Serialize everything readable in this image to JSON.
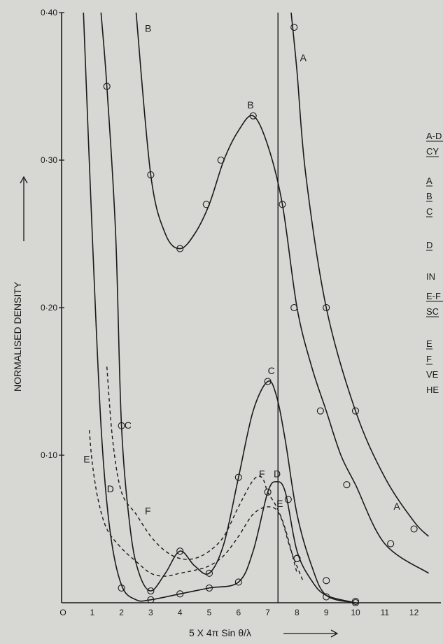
{
  "chart_data": {
    "type": "line",
    "xlabel": "5 X 4π Sin θ/λ",
    "ylabel": "NORMALISED  DENSITY",
    "xlim": [
      0,
      13
    ],
    "ylim": [
      0,
      0.4
    ],
    "x_ticks": [
      "O",
      "1",
      "2",
      "3",
      "4",
      "5",
      "6",
      "7",
      "8",
      "9",
      "10",
      "11",
      "12"
    ],
    "y_ticks": [
      "0·40",
      "0·30",
      "0·20",
      "0·10"
    ],
    "y_tick_values": [
      0.4,
      0.3,
      0.2,
      0.1
    ],
    "vertical_line_x": 7.35,
    "grid": false,
    "series": [
      {
        "name": "A",
        "style": "solid",
        "curve": [
          [
            7.8,
            0.4
          ],
          [
            8.0,
            0.36
          ],
          [
            8.3,
            0.29
          ],
          [
            9.0,
            0.2
          ],
          [
            10.0,
            0.13
          ],
          [
            11.0,
            0.085
          ],
          [
            12.0,
            0.055
          ],
          [
            12.5,
            0.045
          ]
        ],
        "points": [
          [
            7.9,
            0.39
          ],
          [
            9.0,
            0.2
          ],
          [
            10.0,
            0.13
          ],
          [
            12.0,
            0.05
          ]
        ]
      },
      {
        "name": "B",
        "style": "solid",
        "curve": [
          [
            2.5,
            0.4
          ],
          [
            3.0,
            0.29
          ],
          [
            3.5,
            0.25
          ],
          [
            4.0,
            0.24
          ],
          [
            4.5,
            0.25
          ],
          [
            5.0,
            0.27
          ],
          [
            5.5,
            0.3
          ],
          [
            6.0,
            0.32
          ],
          [
            6.5,
            0.33
          ],
          [
            7.0,
            0.31
          ],
          [
            7.5,
            0.27
          ],
          [
            8.0,
            0.2
          ],
          [
            8.5,
            0.16
          ],
          [
            9.0,
            0.13
          ],
          [
            9.5,
            0.1
          ],
          [
            10.0,
            0.08
          ],
          [
            11.0,
            0.04
          ],
          [
            12.5,
            0.02
          ]
        ],
        "points": [
          [
            3.0,
            0.29
          ],
          [
            4.0,
            0.24
          ],
          [
            4.9,
            0.27
          ],
          [
            5.4,
            0.3
          ],
          [
            6.5,
            0.33
          ],
          [
            7.5,
            0.27
          ],
          [
            7.9,
            0.2
          ],
          [
            8.8,
            0.13
          ],
          [
            9.7,
            0.08
          ],
          [
            11.2,
            0.04
          ]
        ]
      },
      {
        "name": "C",
        "style": "solid",
        "curve": [
          [
            1.3,
            0.4
          ],
          [
            1.5,
            0.35
          ],
          [
            1.8,
            0.25
          ],
          [
            2.0,
            0.12
          ],
          [
            2.3,
            0.05
          ],
          [
            2.6,
            0.02
          ],
          [
            3.0,
            0.008
          ],
          [
            3.5,
            0.02
          ],
          [
            4.0,
            0.035
          ],
          [
            4.5,
            0.025
          ],
          [
            5.0,
            0.02
          ],
          [
            5.5,
            0.04
          ],
          [
            6.0,
            0.085
          ],
          [
            6.5,
            0.13
          ],
          [
            7.0,
            0.15
          ],
          [
            7.3,
            0.14
          ],
          [
            7.6,
            0.11
          ],
          [
            8.0,
            0.06
          ],
          [
            8.5,
            0.025
          ],
          [
            9.0,
            0.005
          ],
          [
            10.0,
            0.0
          ]
        ],
        "points": [
          [
            1.5,
            0.35
          ],
          [
            2.0,
            0.12
          ],
          [
            3.0,
            0.008
          ],
          [
            4.0,
            0.035
          ],
          [
            5.0,
            0.02
          ],
          [
            6.0,
            0.085
          ],
          [
            7.0,
            0.15
          ],
          [
            8.0,
            0.03
          ],
          [
            9.0,
            0.004
          ],
          [
            10.0,
            0.001
          ]
        ]
      },
      {
        "name": "D",
        "style": "solid",
        "curve": [
          [
            0.7,
            0.4
          ],
          [
            1.0,
            0.25
          ],
          [
            1.3,
            0.12
          ],
          [
            1.6,
            0.05
          ],
          [
            2.0,
            0.012
          ],
          [
            2.5,
            0.002
          ],
          [
            3.0,
            0.002
          ],
          [
            4.0,
            0.006
          ],
          [
            5.0,
            0.01
          ],
          [
            6.0,
            0.014
          ],
          [
            6.5,
            0.035
          ],
          [
            7.0,
            0.075
          ],
          [
            7.3,
            0.082
          ],
          [
            7.6,
            0.075
          ],
          [
            8.0,
            0.035
          ],
          [
            8.5,
            0.015
          ],
          [
            9.0,
            0.005
          ],
          [
            10.0,
            0.0
          ]
        ],
        "points": [
          [
            2.0,
            0.01
          ],
          [
            3.0,
            0.002
          ],
          [
            4.0,
            0.006
          ],
          [
            5.0,
            0.01
          ],
          [
            6.0,
            0.014
          ],
          [
            7.0,
            0.075
          ],
          [
            7.7,
            0.07
          ],
          [
            8.0,
            0.03
          ],
          [
            9.0,
            0.015
          ],
          [
            10.0,
            0.0
          ]
        ]
      },
      {
        "name": "E",
        "style": "dashed",
        "curve": [
          [
            0.9,
            0.117
          ],
          [
            1.0,
            0.095
          ],
          [
            1.2,
            0.07
          ],
          [
            1.5,
            0.05
          ],
          [
            2.0,
            0.037
          ],
          [
            2.5,
            0.028
          ],
          [
            3.0,
            0.02
          ],
          [
            3.5,
            0.018
          ],
          [
            4.0,
            0.02
          ],
          [
            4.5,
            0.022
          ],
          [
            5.0,
            0.025
          ],
          [
            5.5,
            0.032
          ],
          [
            6.0,
            0.045
          ],
          [
            6.5,
            0.06
          ],
          [
            7.0,
            0.065
          ],
          [
            7.4,
            0.06
          ],
          [
            7.8,
            0.035
          ],
          [
            8.2,
            0.015
          ]
        ]
      },
      {
        "name": "F",
        "style": "dashed",
        "curve": [
          [
            1.5,
            0.16
          ],
          [
            1.7,
            0.11
          ],
          [
            2.0,
            0.075
          ],
          [
            2.5,
            0.06
          ],
          [
            3.0,
            0.045
          ],
          [
            3.5,
            0.035
          ],
          [
            4.0,
            0.03
          ],
          [
            4.5,
            0.03
          ],
          [
            5.0,
            0.035
          ],
          [
            5.5,
            0.045
          ],
          [
            6.0,
            0.065
          ],
          [
            6.5,
            0.083
          ],
          [
            6.8,
            0.085
          ],
          [
            7.0,
            0.075
          ],
          [
            7.3,
            0.065
          ],
          [
            7.6,
            0.05
          ],
          [
            8.0,
            0.02
          ]
        ]
      }
    ],
    "curve_labels": [
      {
        "text": "B",
        "x": 2.8,
        "y": 0.387
      },
      {
        "text": "A",
        "x": 8.1,
        "y": 0.367
      },
      {
        "text": "B",
        "x": 6.3,
        "y": 0.335
      },
      {
        "text": "C",
        "x": 7.0,
        "y": 0.155
      },
      {
        "text": "C",
        "x": 2.1,
        "y": 0.118
      },
      {
        "text": "E",
        "x": 0.7,
        "y": 0.095
      },
      {
        "text": "D",
        "x": 1.5,
        "y": 0.075
      },
      {
        "text": "F",
        "x": 2.8,
        "y": 0.06
      },
      {
        "text": "F",
        "x": 6.7,
        "y": 0.085
      },
      {
        "text": "D",
        "x": 7.2,
        "y": 0.085
      },
      {
        "text": "E",
        "x": 7.3,
        "y": 0.065
      },
      {
        "text": "A",
        "x": 11.3,
        "y": 0.063
      }
    ],
    "legend": [
      {
        "text": "A-D",
        "underline": true
      },
      {
        "text": "CY",
        "underline": true
      },
      {
        "text": "A",
        "underline": true
      },
      {
        "text": "B",
        "underline": true
      },
      {
        "text": "C",
        "underline": true
      },
      {
        "text": "D",
        "underline": true
      },
      {
        "text": "IN",
        "underline": false
      },
      {
        "text": "E-F",
        "underline": true
      },
      {
        "text": "SC",
        "underline": true
      },
      {
        "text": "E",
        "underline": true
      },
      {
        "text": "F",
        "underline": true
      },
      {
        "text": "VE",
        "underline": false
      },
      {
        "text": "HE",
        "underline": false
      }
    ],
    "legend_placement": "right, cropped"
  }
}
